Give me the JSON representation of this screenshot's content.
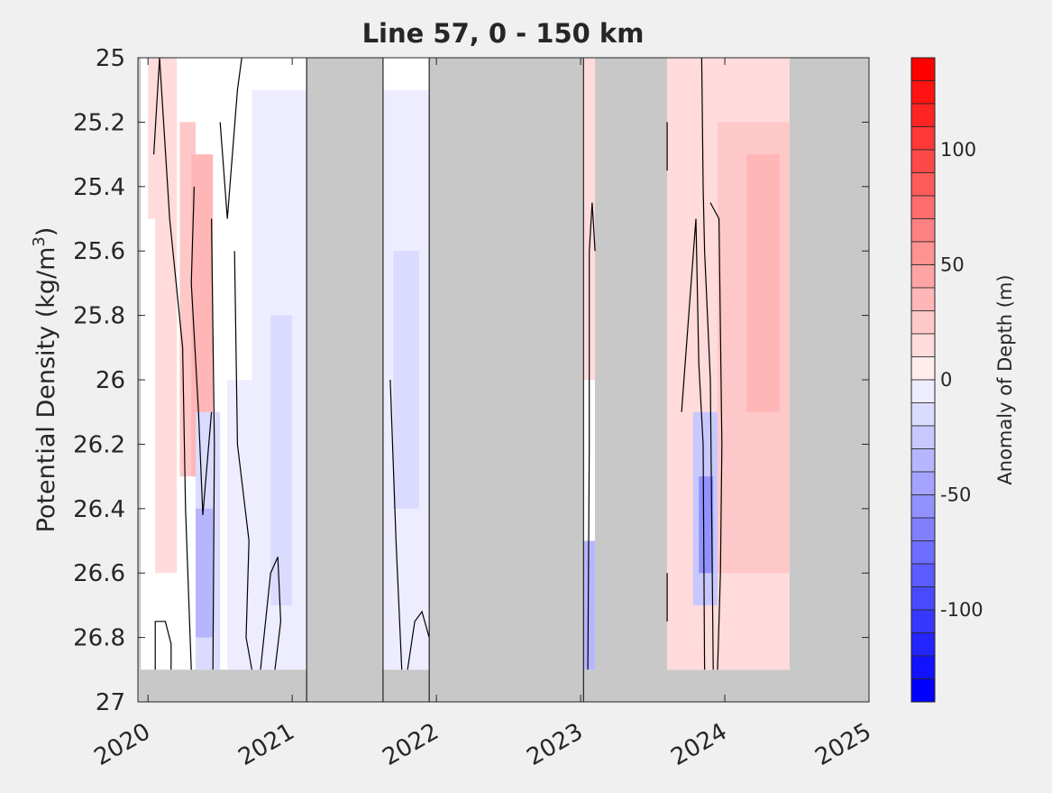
{
  "chart_data": {
    "type": "heatmap",
    "title": "Line 57, 0 - 150 km",
    "ylabel_main": "Potential Density (kg/m",
    "ylabel_sup": "3",
    "ylabel_close": ")",
    "xlim": [
      2019.93,
      2025.0
    ],
    "ylim": [
      25.0,
      27.0
    ],
    "y_reversed": true,
    "xticks": [
      2020,
      2021,
      2022,
      2023,
      2024,
      2025
    ],
    "xtick_labels": [
      "2020",
      "2021",
      "2022",
      "2023",
      "2024",
      "2025"
    ],
    "yticks": [
      25.0,
      25.2,
      25.4,
      25.6,
      25.8,
      26.0,
      26.2,
      26.4,
      26.6,
      26.8,
      27.0
    ],
    "ytick_labels": [
      "25",
      "25.2",
      "25.4",
      "25.6",
      "25.8",
      "26",
      "26.2",
      "26.4",
      "26.6",
      "26.8",
      "27"
    ],
    "missing_color": "#c8c8c8",
    "colorbar": {
      "label": "Anomaly of Depth (m)",
      "clim": [
        -140,
        140
      ],
      "levels_step": 10,
      "ticks": [
        100,
        50,
        0,
        -50,
        -100
      ],
      "tick_labels": [
        "100",
        "50",
        "0",
        "-50",
        "-100"
      ],
      "neg_color": "#0000ff",
      "pos_color": "#ff0000",
      "mid_color": "#ffffff"
    },
    "no_data_periods": [
      [
        2021.1,
        2021.63
      ],
      [
        2021.95,
        2023.02
      ],
      [
        2023.1,
        2023.6
      ],
      [
        2024.45,
        2025.0
      ]
    ],
    "survey_periods": [
      {
        "x": [
          2019.95,
          2021.1
        ],
        "bottom_density": 26.9
      },
      {
        "x": [
          2021.63,
          2021.95
        ],
        "bottom_density": 26.9
      },
      {
        "x": [
          2023.02,
          2023.1
        ],
        "bottom_density": 26.9
      },
      {
        "x": [
          2023.6,
          2024.45
        ],
        "bottom_density": 26.9
      }
    ],
    "anomaly_regions": [
      {
        "x": [
          2020.05,
          2020.2
        ],
        "y": [
          25.0,
          26.6
        ],
        "value": 15
      },
      {
        "x": [
          2020.22,
          2020.33
        ],
        "y": [
          25.2,
          26.3
        ],
        "value": 25
      },
      {
        "x": [
          2020.3,
          2020.45
        ],
        "y": [
          25.3,
          26.3
        ],
        "value": 35
      },
      {
        "x": [
          2020.0,
          2020.1
        ],
        "y": [
          25.0,
          25.5
        ],
        "value": 15
      },
      {
        "x": [
          2020.33,
          2020.5
        ],
        "y": [
          26.1,
          26.9
        ],
        "value": -25
      },
      {
        "x": [
          2020.33,
          2020.45
        ],
        "y": [
          26.4,
          26.8
        ],
        "value": -45
      },
      {
        "x": [
          2020.55,
          2020.72
        ],
        "y": [
          26.0,
          26.9
        ],
        "value": -10
      },
      {
        "x": [
          2020.72,
          2021.1
        ],
        "y": [
          25.1,
          26.9
        ],
        "value": -12
      },
      {
        "x": [
          2020.85,
          2021.0
        ],
        "y": [
          25.8,
          26.7
        ],
        "value": -20
      },
      {
        "x": [
          2021.63,
          2021.95
        ],
        "y": [
          25.1,
          26.9
        ],
        "value": -12
      },
      {
        "x": [
          2021.7,
          2021.88
        ],
        "y": [
          25.6,
          26.4
        ],
        "value": -22
      },
      {
        "x": [
          2023.02,
          2023.1
        ],
        "y": [
          25.0,
          26.0
        ],
        "value": 15
      },
      {
        "x": [
          2023.02,
          2023.1
        ],
        "y": [
          26.5,
          26.9
        ],
        "value": -45
      },
      {
        "x": [
          2023.6,
          2024.45
        ],
        "y": [
          25.0,
          26.9
        ],
        "value": 15
      },
      {
        "x": [
          2023.95,
          2024.45
        ],
        "y": [
          25.2,
          26.6
        ],
        "value": 25
      },
      {
        "x": [
          2024.15,
          2024.38
        ],
        "y": [
          25.3,
          26.1
        ],
        "value": 40
      },
      {
        "x": [
          2023.78,
          2023.95
        ],
        "y": [
          26.1,
          26.7
        ],
        "value": -35
      },
      {
        "x": [
          2023.82,
          2023.92
        ],
        "y": [
          26.3,
          26.6
        ],
        "value": -65
      }
    ],
    "zero_contours": [
      [
        [
          2020.04,
          25.3
        ],
        [
          2020.08,
          25.0
        ]
      ],
      [
        [
          2020.05,
          26.9
        ],
        [
          2020.05,
          26.75
        ],
        [
          2020.12,
          26.75
        ],
        [
          2020.16,
          26.82
        ],
        [
          2020.16,
          26.9
        ]
      ],
      [
        [
          2020.08,
          25.0
        ],
        [
          2020.15,
          25.5
        ],
        [
          2020.24,
          25.9
        ],
        [
          2020.26,
          26.4
        ],
        [
          2020.3,
          26.9
        ]
      ],
      [
        [
          2020.32,
          25.4
        ],
        [
          2020.3,
          25.7
        ],
        [
          2020.35,
          26.1
        ],
        [
          2020.38,
          26.42
        ],
        [
          2020.44,
          26.1
        ]
      ],
      [
        [
          2020.44,
          25.5
        ],
        [
          2020.46,
          26.2
        ],
        [
          2020.45,
          26.9
        ]
      ],
      [
        [
          2020.5,
          25.2
        ],
        [
          2020.55,
          25.5
        ],
        [
          2020.62,
          25.1
        ],
        [
          2020.65,
          25.0
        ]
      ],
      [
        [
          2020.6,
          25.6
        ],
        [
          2020.62,
          26.2
        ],
        [
          2020.7,
          26.5
        ],
        [
          2020.68,
          26.8
        ],
        [
          2020.72,
          26.9
        ]
      ],
      [
        [
          2020.78,
          26.9
        ],
        [
          2020.85,
          26.6
        ],
        [
          2020.9,
          26.55
        ],
        [
          2020.92,
          26.75
        ],
        [
          2020.88,
          26.9
        ]
      ],
      [
        [
          2021.68,
          26.0
        ],
        [
          2021.72,
          26.5
        ],
        [
          2021.76,
          26.9
        ]
      ],
      [
        [
          2021.8,
          26.9
        ],
        [
          2021.85,
          26.75
        ],
        [
          2021.9,
          26.72
        ],
        [
          2021.95,
          26.8
        ]
      ],
      [
        [
          2023.05,
          26.9
        ],
        [
          2023.06,
          26.2
        ],
        [
          2023.06,
          25.6
        ],
        [
          2023.08,
          25.45
        ],
        [
          2023.1,
          25.6
        ]
      ],
      [
        [
          2023.6,
          25.35
        ],
        [
          2023.6,
          25.2
        ]
      ],
      [
        [
          2023.6,
          26.6
        ],
        [
          2023.6,
          26.75
        ]
      ],
      [
        [
          2023.7,
          26.1
        ],
        [
          2023.75,
          25.8
        ],
        [
          2023.8,
          25.5
        ],
        [
          2023.82,
          25.95
        ],
        [
          2023.85,
          26.2
        ],
        [
          2023.86,
          26.9
        ]
      ],
      [
        [
          2023.84,
          25.0
        ],
        [
          2023.85,
          25.4
        ],
        [
          2023.86,
          25.6
        ],
        [
          2023.9,
          26.0
        ],
        [
          2023.92,
          26.9
        ]
      ],
      [
        [
          2023.95,
          26.9
        ],
        [
          2023.97,
          26.6
        ],
        [
          2023.98,
          26.2
        ],
        [
          2023.96,
          25.5
        ],
        [
          2023.9,
          25.45
        ]
      ]
    ]
  }
}
